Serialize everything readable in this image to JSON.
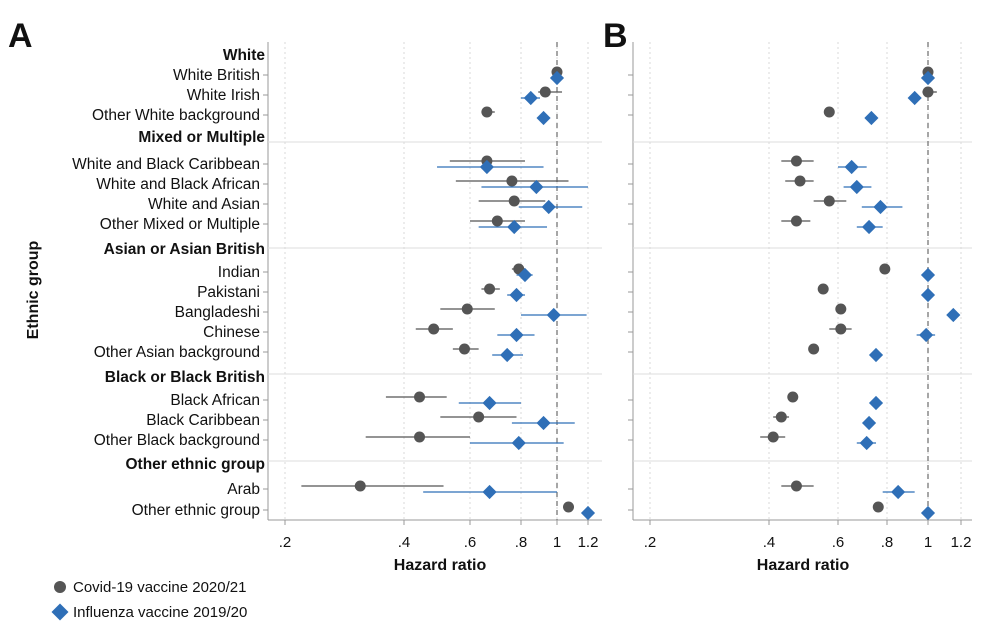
{
  "panels": [
    "A",
    "B"
  ],
  "colors": {
    "covid": "#555555",
    "flu": "#2f6fb7",
    "grid": "#d9d9d9",
    "ref": "#888888"
  },
  "legend": [
    {
      "label": "Covid-19 vaccine 2020/21",
      "marker": "circle"
    },
    {
      "label": "Influenza vaccine 2019/20",
      "marker": "diamond"
    }
  ],
  "chart_data": [
    {
      "type": "scatter",
      "panel": "A",
      "xlabel": "Hazard ratio",
      "ylabel": "Ethnic group",
      "xscale": "log",
      "xlim": [
        0.19,
        1.3
      ],
      "xticks": [
        0.2,
        0.4,
        0.6,
        0.8,
        1,
        1.2
      ],
      "xtick_labels": [
        ".2",
        ".4",
        ".6",
        ".8",
        "1",
        "1.2"
      ],
      "reference_line": 1,
      "groups": [
        "White",
        "Mixed or Multiple",
        "Asian or Asian British",
        "Black or Black British",
        "Other ethnic group"
      ],
      "rows": [
        {
          "group": "White",
          "label": "White British",
          "covid": [
            1.0,
            1.0,
            1.0
          ],
          "flu": [
            1.0,
            1.0,
            1.0
          ]
        },
        {
          "group": "White",
          "label": "White Irish",
          "covid": [
            0.93,
            0.89,
            1.03
          ],
          "flu": [
            0.85,
            0.8,
            0.9
          ]
        },
        {
          "group": "White",
          "label": "Other White background",
          "covid": [
            0.66,
            0.64,
            0.69
          ],
          "flu": [
            0.92,
            0.9,
            0.94
          ]
        },
        {
          "group": "Mixed or Multiple",
          "label": "White and Black Caribbean",
          "covid": [
            0.66,
            0.53,
            0.82
          ],
          "flu": [
            0.66,
            0.49,
            0.92
          ]
        },
        {
          "group": "Mixed or Multiple",
          "label": "White and Black African",
          "covid": [
            0.76,
            0.55,
            1.07
          ],
          "flu": [
            0.88,
            0.64,
            1.2
          ]
        },
        {
          "group": "Mixed or Multiple",
          "label": "White and Asian",
          "covid": [
            0.77,
            0.63,
            0.93
          ],
          "flu": [
            0.95,
            0.79,
            1.16
          ]
        },
        {
          "group": "Mixed or Multiple",
          "label": "Other Mixed or Multiple",
          "covid": [
            0.7,
            0.6,
            0.82
          ],
          "flu": [
            0.77,
            0.63,
            0.94
          ]
        },
        {
          "group": "Asian or Asian British",
          "label": "Indian",
          "covid": [
            0.79,
            0.76,
            0.82
          ],
          "flu": [
            0.82,
            0.78,
            0.86
          ]
        },
        {
          "group": "Asian or Asian British",
          "label": "Pakistani",
          "covid": [
            0.67,
            0.64,
            0.71
          ],
          "flu": [
            0.78,
            0.74,
            0.82
          ]
        },
        {
          "group": "Asian or Asian British",
          "label": "Bangladeshi",
          "covid": [
            0.59,
            0.5,
            0.69
          ],
          "flu": [
            0.98,
            0.8,
            1.19
          ]
        },
        {
          "group": "Asian or Asian British",
          "label": "Chinese",
          "covid": [
            0.48,
            0.43,
            0.54
          ],
          "flu": [
            0.78,
            0.7,
            0.87
          ]
        },
        {
          "group": "Asian or Asian British",
          "label": "Other Asian background",
          "covid": [
            0.58,
            0.54,
            0.63
          ],
          "flu": [
            0.74,
            0.68,
            0.81
          ]
        },
        {
          "group": "Black or Black British",
          "label": "Black African",
          "covid": [
            0.44,
            0.36,
            0.52
          ],
          "flu": [
            0.67,
            0.56,
            0.8
          ]
        },
        {
          "group": "Black or Black British",
          "label": "Black Caribbean",
          "covid": [
            0.63,
            0.5,
            0.78
          ],
          "flu": [
            0.92,
            0.76,
            1.11
          ]
        },
        {
          "group": "Black or Black British",
          "label": "Other Black background",
          "covid": [
            0.44,
            0.32,
            0.6
          ],
          "flu": [
            0.79,
            0.6,
            1.04
          ]
        },
        {
          "group": "Other ethnic group",
          "label": "Arab",
          "covid": [
            0.31,
            0.22,
            0.51
          ],
          "flu": [
            0.67,
            0.45,
            1.0
          ]
        },
        {
          "group": "Other ethnic group",
          "label": "Other ethnic group",
          "covid": [
            1.07,
            1.04,
            1.1
          ],
          "flu": [
            1.2,
            1.17,
            1.23
          ]
        }
      ]
    },
    {
      "type": "scatter",
      "panel": "B",
      "xlabel": "Hazard ratio",
      "xscale": "log",
      "xlim": [
        0.19,
        1.3
      ],
      "xticks": [
        0.2,
        0.4,
        0.6,
        0.8,
        1,
        1.2
      ],
      "xtick_labels": [
        ".2",
        ".4",
        ".6",
        ".8",
        "1",
        "1.2"
      ],
      "reference_line": 1,
      "rows": [
        {
          "label": "White British",
          "covid": [
            1.0,
            1.0,
            1.0
          ],
          "flu": [
            1.0,
            1.0,
            1.0
          ]
        },
        {
          "label": "White Irish",
          "covid": [
            1.0,
            0.97,
            1.05
          ],
          "flu": [
            0.93,
            0.91,
            0.95
          ]
        },
        {
          "label": "Other White background",
          "covid": [
            0.57,
            0.56,
            0.58
          ],
          "flu": [
            0.73,
            0.72,
            0.74
          ]
        },
        {
          "label": "White and Black Caribbean",
          "covid": [
            0.47,
            0.43,
            0.52
          ],
          "flu": [
            0.65,
            0.6,
            0.71
          ]
        },
        {
          "label": "White and Black African",
          "covid": [
            0.48,
            0.44,
            0.52
          ],
          "flu": [
            0.67,
            0.62,
            0.73
          ]
        },
        {
          "label": "White and Asian",
          "covid": [
            0.57,
            0.52,
            0.63
          ],
          "flu": [
            0.77,
            0.69,
            0.87
          ]
        },
        {
          "label": "Other Mixed or Multiple",
          "covid": [
            0.47,
            0.43,
            0.51
          ],
          "flu": [
            0.72,
            0.67,
            0.78
          ]
        },
        {
          "label": "Indian",
          "covid": [
            0.79,
            0.78,
            0.8
          ],
          "flu": [
            1.0,
            0.99,
            1.02
          ]
        },
        {
          "label": "Pakistani",
          "covid": [
            0.55,
            0.54,
            0.56
          ],
          "flu": [
            1.0,
            0.99,
            1.01
          ]
        },
        {
          "label": "Bangladeshi",
          "covid": [
            0.61,
            0.6,
            0.62
          ],
          "flu": [
            1.15,
            1.14,
            1.17
          ]
        },
        {
          "label": "Chinese",
          "covid": [
            0.61,
            0.57,
            0.65
          ],
          "flu": [
            0.99,
            0.94,
            1.04
          ]
        },
        {
          "label": "Other Asian background",
          "covid": [
            0.52,
            0.51,
            0.53
          ],
          "flu": [
            0.75,
            0.74,
            0.77
          ]
        },
        {
          "label": "Black African",
          "covid": [
            0.46,
            0.45,
            0.47
          ],
          "flu": [
            0.75,
            0.74,
            0.76
          ]
        },
        {
          "label": "Black Caribbean",
          "covid": [
            0.43,
            0.41,
            0.45
          ],
          "flu": [
            0.72,
            0.7,
            0.74
          ]
        },
        {
          "label": "Other Black background",
          "covid": [
            0.41,
            0.38,
            0.44
          ],
          "flu": [
            0.71,
            0.67,
            0.75
          ]
        },
        {
          "label": "Arab",
          "covid": [
            0.47,
            0.43,
            0.52
          ],
          "flu": [
            0.85,
            0.78,
            0.93
          ]
        },
        {
          "label": "Other ethnic group",
          "covid": [
            0.76,
            0.75,
            0.77
          ],
          "flu": [
            1.0,
            0.99,
            1.01
          ]
        }
      ]
    }
  ]
}
